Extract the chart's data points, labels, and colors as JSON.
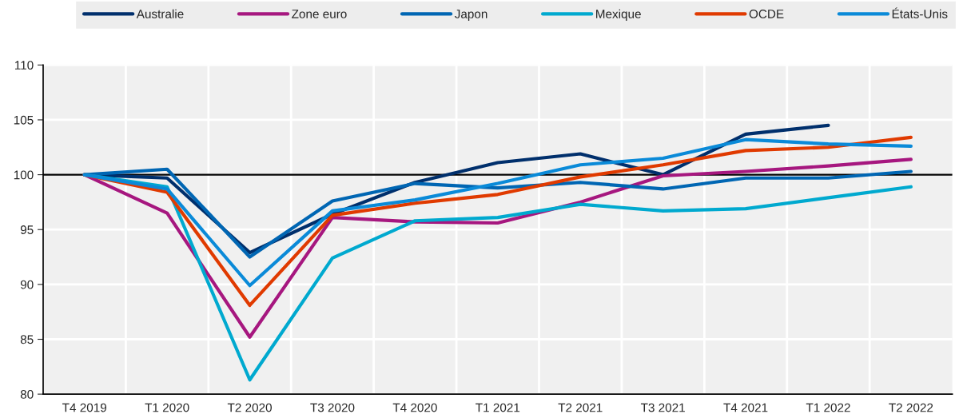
{
  "chart_data": {
    "type": "line",
    "categories": [
      "T4 2019",
      "T1 2020",
      "T2 2020",
      "T3 2020",
      "T4 2020",
      "T1 2021",
      "T2 2021",
      "T3 2021",
      "T4 2021",
      "T1 2022",
      "T2 2022"
    ],
    "series": [
      {
        "name": "Australie",
        "color": "#002f6c",
        "values": [
          100,
          99.7,
          92.9,
          96.4,
          99.3,
          101.1,
          101.9,
          100.0,
          103.7,
          104.5,
          null
        ]
      },
      {
        "name": "Zone euro",
        "color": "#a6177f",
        "values": [
          100,
          96.5,
          85.2,
          96.1,
          95.7,
          95.6,
          97.5,
          99.9,
          100.3,
          100.8,
          101.4
        ]
      },
      {
        "name": "Japon",
        "color": "#0066b3",
        "values": [
          100,
          100.5,
          92.5,
          97.6,
          99.2,
          98.8,
          99.3,
          98.7,
          99.7,
          99.7,
          100.3
        ]
      },
      {
        "name": "Mexique",
        "color": "#00a9cf",
        "values": [
          100,
          98.9,
          81.3,
          92.4,
          95.8,
          96.1,
          97.3,
          96.7,
          96.9,
          97.9,
          98.9
        ]
      },
      {
        "name": "OCDE",
        "color": "#e03a00",
        "values": [
          100,
          98.4,
          88.1,
          96.3,
          97.4,
          98.2,
          99.8,
          100.9,
          102.2,
          102.5,
          103.4
        ]
      },
      {
        "name": "États-Unis",
        "color": "#0a8ad8",
        "values": [
          100,
          98.7,
          89.9,
          96.7,
          97.7,
          99.2,
          100.9,
          101.5,
          103.2,
          102.8,
          102.6
        ]
      }
    ],
    "ylim": [
      80,
      110
    ],
    "yticks": [
      80,
      85,
      90,
      95,
      100,
      105,
      110
    ],
    "ref_lines": [
      {
        "axis": "y",
        "value": 100,
        "color": "#000000"
      }
    ],
    "grid": true,
    "legend": "top",
    "marker": "none",
    "line_style": "solid"
  }
}
